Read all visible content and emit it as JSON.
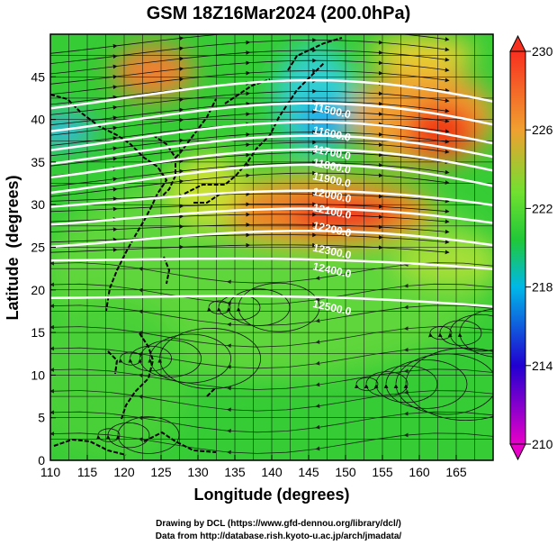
{
  "title": "GSM 18Z16Mar2024 (200.0hPa)",
  "xlabel": "Longitude (degrees)",
  "ylabel": "Latitude  (degrees)",
  "x_ticks": [
    110,
    115,
    120,
    125,
    130,
    135,
    140,
    145,
    150,
    155,
    160,
    165
  ],
  "y_ticks": [
    0,
    5,
    10,
    15,
    20,
    25,
    30,
    35,
    40,
    45
  ],
  "xlim": [
    110,
    170
  ],
  "ylim": [
    0,
    50
  ],
  "colorbar": {
    "ticks": [
      210,
      214,
      218,
      222,
      226,
      230
    ],
    "range": [
      210,
      230
    ],
    "colors": [
      "#e800c8",
      "#2000d0",
      "#00b8e8",
      "#20c838",
      "#70e030",
      "#f0a030",
      "#f83020"
    ]
  },
  "contours": [
    {
      "label": "11500.0",
      "lat_at_145": 41.5
    },
    {
      "label": "11600.0",
      "lat_at_145": 38.8
    },
    {
      "label": "11700.0",
      "lat_at_145": 36.6
    },
    {
      "label": "11800.0",
      "lat_at_145": 35.0
    },
    {
      "label": "11900.0",
      "lat_at_145": 33.4
    },
    {
      "label": "12000.0",
      "lat_at_145": 31.6
    },
    {
      "label": "12100.0",
      "lat_at_145": 29.7
    },
    {
      "label": "12200.0",
      "lat_at_145": 27.6
    },
    {
      "label": "12300.0",
      "lat_at_145": 25.0
    },
    {
      "label": "12400.0",
      "lat_at_145": 22.8
    },
    {
      "label": "12500.0",
      "lat_at_145": 18.4
    }
  ],
  "credits": [
    "Drawing by DCL (https://www.gfd-dennou.org/library/dcl/)",
    "Data from http://database.rish.kyoto-u.ac.jp/arch/jmadata/"
  ]
}
